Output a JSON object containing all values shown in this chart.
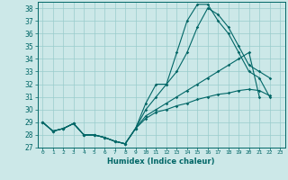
{
  "title": "",
  "xlabel": "Humidex (Indice chaleur)",
  "bg_color": "#cce8e8",
  "grid_color": "#99cccc",
  "line_color": "#006666",
  "xlim": [
    -0.5,
    23.5
  ],
  "ylim": [
    27,
    38.5
  ],
  "yticks": [
    27,
    28,
    29,
    30,
    31,
    32,
    33,
    34,
    35,
    36,
    37,
    38
  ],
  "xticks": [
    0,
    1,
    2,
    3,
    4,
    5,
    6,
    7,
    8,
    9,
    10,
    11,
    12,
    13,
    14,
    15,
    16,
    17,
    18,
    19,
    20,
    21,
    22,
    23
  ],
  "series": [
    [
      29.0,
      28.3,
      28.5,
      28.9,
      28.0,
      28.0,
      27.8,
      27.5,
      27.3,
      28.5,
      30.5,
      32.0,
      32.0,
      34.5,
      37.0,
      38.3,
      38.3,
      37.0,
      36.0,
      34.5,
      33.0,
      32.5,
      31.0,
      null
    ],
    [
      29.0,
      28.3,
      28.5,
      28.9,
      28.0,
      28.0,
      27.8,
      27.5,
      27.3,
      28.5,
      30.0,
      31.0,
      32.0,
      33.0,
      34.5,
      36.5,
      38.0,
      37.5,
      36.5,
      35.0,
      33.5,
      33.0,
      32.5,
      null
    ],
    [
      29.0,
      28.3,
      28.5,
      28.9,
      28.0,
      28.0,
      27.8,
      27.5,
      27.3,
      28.5,
      29.5,
      30.0,
      30.5,
      31.0,
      31.5,
      32.0,
      32.5,
      33.0,
      33.5,
      34.0,
      34.5,
      31.0,
      null,
      null
    ],
    [
      29.0,
      28.3,
      28.5,
      28.9,
      28.0,
      28.0,
      27.8,
      27.5,
      27.3,
      28.5,
      29.3,
      29.8,
      30.0,
      30.3,
      30.5,
      30.8,
      31.0,
      31.2,
      31.3,
      31.5,
      31.6,
      31.5,
      31.1,
      null
    ]
  ],
  "xlabel_fontsize": 6.0,
  "xtick_fontsize": 4.5,
  "ytick_fontsize": 5.5,
  "marker_size": 1.8,
  "linewidth": 0.8
}
